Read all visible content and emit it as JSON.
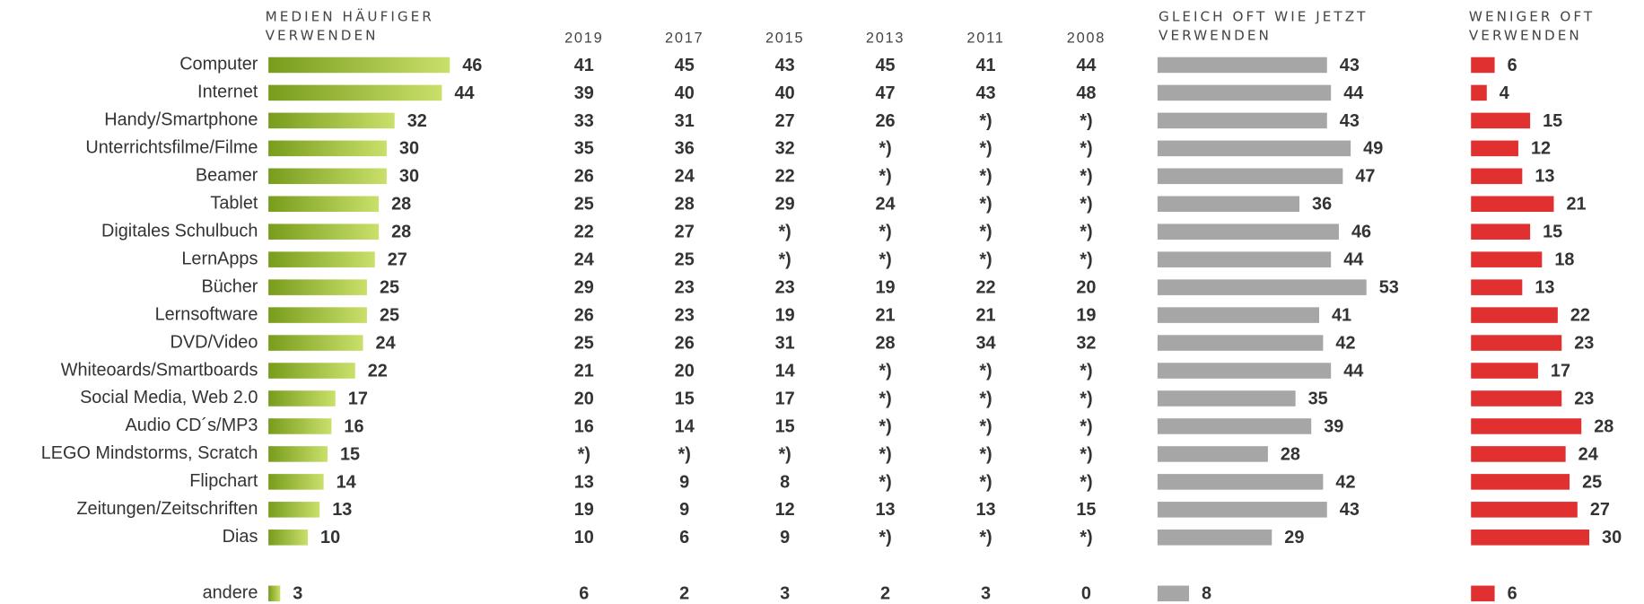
{
  "chart_data": {
    "type": "bar",
    "orientation": "horizontal",
    "categories": [
      "Computer",
      "Internet",
      "Handy/Smartphone",
      "Unterrichtsfilme/Filme",
      "Beamer",
      "Tablet",
      "Digitales Schulbuch",
      "LernApps",
      "Bücher",
      "Lernsoftware",
      "DVD/Video",
      "Whiteoards/Smartboards",
      "Social Media, Web 2.0",
      "Audio CD´s/MP3",
      "LEGO Mindstorms, Scratch",
      "Flipchart",
      "Zeitungen/Zeitschriften",
      "Dias",
      "andere"
    ],
    "series": [
      {
        "name": "MEDIEN HÄUFIGER\nVERWENDEN",
        "color": "#86aa26",
        "gradient": [
          "#789c1c",
          "#c9e06a"
        ],
        "values": [
          46,
          44,
          32,
          30,
          30,
          28,
          28,
          27,
          25,
          25,
          24,
          22,
          17,
          16,
          15,
          14,
          13,
          10,
          3
        ]
      },
      {
        "name": "GLEICH OFT WIE JETZT\nVERWENDEN",
        "color": "#a6a6a6",
        "values": [
          43,
          44,
          43,
          49,
          47,
          36,
          46,
          44,
          53,
          41,
          42,
          44,
          35,
          39,
          28,
          42,
          43,
          29,
          8
        ]
      },
      {
        "name": "WENIGER OFT\nVERWENDEN",
        "color": "#e0302f",
        "values": [
          6,
          4,
          15,
          12,
          13,
          21,
          15,
          18,
          13,
          22,
          23,
          17,
          23,
          28,
          24,
          25,
          27,
          30,
          6
        ]
      }
    ],
    "history": {
      "years": [
        "2019",
        "2017",
        "2015",
        "2013",
        "2011",
        "2008"
      ],
      "rows": [
        [
          41,
          45,
          43,
          45,
          41,
          44
        ],
        [
          39,
          40,
          40,
          47,
          43,
          48
        ],
        [
          33,
          31,
          27,
          26,
          "*)",
          "*)"
        ],
        [
          35,
          36,
          32,
          "*)",
          "*)",
          "*)"
        ],
        [
          26,
          24,
          22,
          "*)",
          "*)",
          "*)"
        ],
        [
          25,
          28,
          29,
          24,
          "*)",
          "*)"
        ],
        [
          22,
          27,
          "*)",
          "*)",
          "*)",
          "*)"
        ],
        [
          24,
          25,
          "*)",
          "*)",
          "*)",
          "*)"
        ],
        [
          29,
          23,
          23,
          19,
          22,
          20
        ],
        [
          26,
          23,
          19,
          21,
          21,
          19
        ],
        [
          25,
          26,
          31,
          28,
          34,
          32
        ],
        [
          21,
          20,
          14,
          "*)",
          "*)",
          "*)"
        ],
        [
          20,
          15,
          17,
          "*)",
          "*)",
          "*)"
        ],
        [
          16,
          14,
          15,
          "*)",
          "*)",
          "*)"
        ],
        [
          "*)",
          "*)",
          "*)",
          "*)",
          "*)",
          "*)"
        ],
        [
          13,
          9,
          8,
          "*)",
          "*)",
          "*)"
        ],
        [
          19,
          9,
          12,
          13,
          13,
          15
        ],
        [
          10,
          6,
          9,
          "*)",
          "*)",
          "*)"
        ],
        [
          6,
          2,
          3,
          2,
          3,
          0
        ]
      ]
    }
  }
}
